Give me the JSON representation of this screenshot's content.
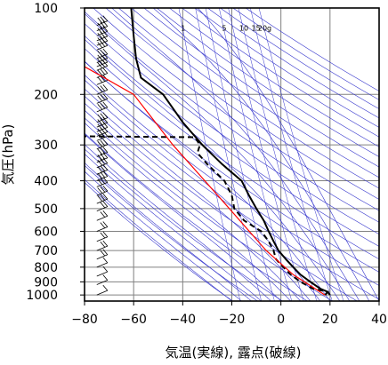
{
  "chart_data": {
    "type": "line",
    "title": "",
    "xlabel": "気温(実線), 露点(破線)",
    "ylabel": "気圧(hPa)",
    "xlim": [
      -80,
      40
    ],
    "ylim": [
      1050,
      100
    ],
    "y_scale": "log",
    "grid": true,
    "x_ticks": [
      "−80",
      "−60",
      "−40",
      "−20",
      "0",
      "20",
      "40"
    ],
    "x_tick_values": [
      -80,
      -60,
      -40,
      -20,
      0,
      20,
      40
    ],
    "y_ticks": [
      "100",
      "200",
      "300",
      "400",
      "500",
      "600",
      "700",
      "800",
      "900",
      "1000"
    ],
    "y_tick_values": [
      100,
      200,
      300,
      400,
      500,
      600,
      700,
      800,
      900,
      1000
    ],
    "mixing_ratio_labels": [
      "1",
      "5",
      "10",
      "15",
      "20g"
    ],
    "colors": {
      "temperature": "#000000",
      "dewpoint": "#000000",
      "red_line": "#ff0000",
      "guide_lines": "#3333cc",
      "grid": "#808080"
    },
    "series": [
      {
        "points": [
          [
            1000,
            20
          ],
          [
            975,
            19
          ],
          [
            950,
            16
          ],
          [
            900,
            12
          ],
          [
            850,
            8
          ],
          [
            800,
            5
          ],
          [
            750,
            2
          ],
          [
            700,
            -1
          ],
          [
            650,
            -3
          ],
          [
            600,
            -5
          ],
          [
            550,
            -7
          ],
          [
            500,
            -10
          ],
          [
            450,
            -13
          ],
          [
            400,
            -16
          ],
          [
            350,
            -24
          ],
          [
            300,
            -32
          ],
          [
            250,
            -40
          ],
          [
            200,
            -48
          ],
          [
            175,
            -57
          ],
          [
            150,
            -59
          ],
          [
            125,
            -60
          ],
          [
            100,
            -61
          ]
        ],
        "style": "solid",
        "color": "#000000"
      },
      {
        "points": [
          [
            1000,
            18
          ],
          [
            975,
            19
          ],
          [
            950,
            13
          ],
          [
            900,
            8
          ],
          [
            850,
            4
          ],
          [
            800,
            1
          ],
          [
            750,
            -2
          ],
          [
            700,
            -3
          ],
          [
            650,
            -5
          ],
          [
            600,
            -8
          ],
          [
            550,
            -15
          ],
          [
            500,
            -19
          ],
          [
            450,
            -20
          ],
          [
            400,
            -23
          ],
          [
            350,
            -30
          ],
          [
            320,
            -34
          ],
          [
            300,
            -33
          ],
          [
            282,
            -35
          ],
          [
            280,
            -80
          ]
        ],
        "style": "dashed",
        "color": "#000000"
      },
      {
        "points": [
          [
            1000,
            18
          ],
          [
            850,
            5
          ],
          [
            700,
            -6
          ],
          [
            500,
            -21
          ],
          [
            400,
            -31
          ],
          [
            300,
            -44
          ],
          [
            200,
            -60
          ],
          [
            160,
            -80
          ]
        ],
        "style": "solid",
        "color": "#ff0000"
      }
    ]
  }
}
